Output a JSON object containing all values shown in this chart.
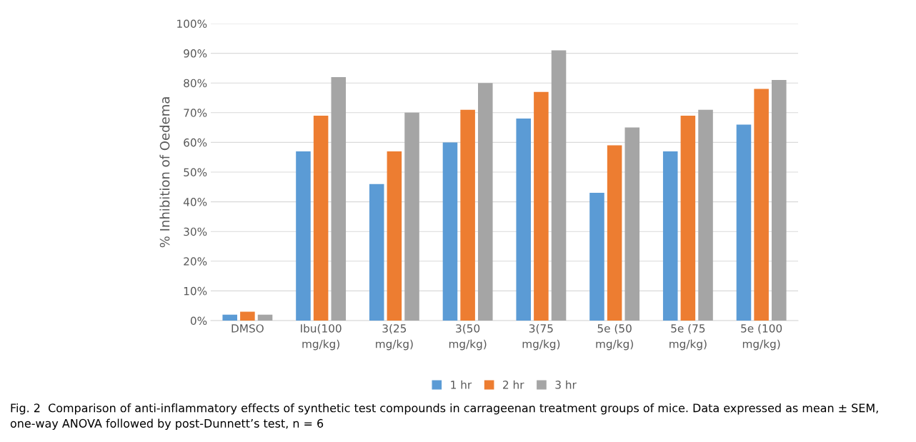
{
  "chart_data": {
    "type": "bar",
    "ylabel": "% Inhibition of Oedema",
    "categories": [
      "DMSO",
      "Ibu(100 mg/kg)",
      "3(25 mg/kg)",
      "3(50 mg/kg)",
      "3(75 mg/kg)",
      "5e (50 mg/kg)",
      "5e (75 mg/kg)",
      "5e (100 mg/kg)"
    ],
    "series": [
      {
        "name": "1 hr",
        "color": "#5b9bd5",
        "values": [
          2,
          57,
          46,
          60,
          68,
          43,
          57,
          66
        ]
      },
      {
        "name": "2 hr",
        "color": "#ed7d31",
        "values": [
          3,
          69,
          57,
          71,
          77,
          59,
          69,
          78
        ]
      },
      {
        "name": "3 hr",
        "color": "#a5a5a5",
        "values": [
          2,
          82,
          70,
          80,
          91,
          65,
          71,
          81
        ]
      }
    ],
    "ylim": [
      0,
      100
    ],
    "yticks": [
      {
        "value": 0,
        "label": "0%"
      },
      {
        "value": 10,
        "label": "10%"
      },
      {
        "value": 20,
        "label": "20%"
      },
      {
        "value": 30,
        "label": "30%"
      },
      {
        "value": 40,
        "label": "40%"
      },
      {
        "value": 50,
        "label": "50%"
      },
      {
        "value": 60,
        "label": "60%"
      },
      {
        "value": 70,
        "label": "70%"
      },
      {
        "value": 80,
        "label": "80%"
      },
      {
        "value": 90,
        "label": "90%"
      },
      {
        "value": 100,
        "label": "100%"
      }
    ],
    "grid": "y",
    "legend": "bottom",
    "annotations": [
      "Fig. 2  Comparison of anti-inflammatory effects of synthetic test compounds in carrageenan treatment groups of mice. Data expressed as mean ± SEM, one-way ANOVA followed by post-Dunnett’s test, n = 6"
    ]
  }
}
